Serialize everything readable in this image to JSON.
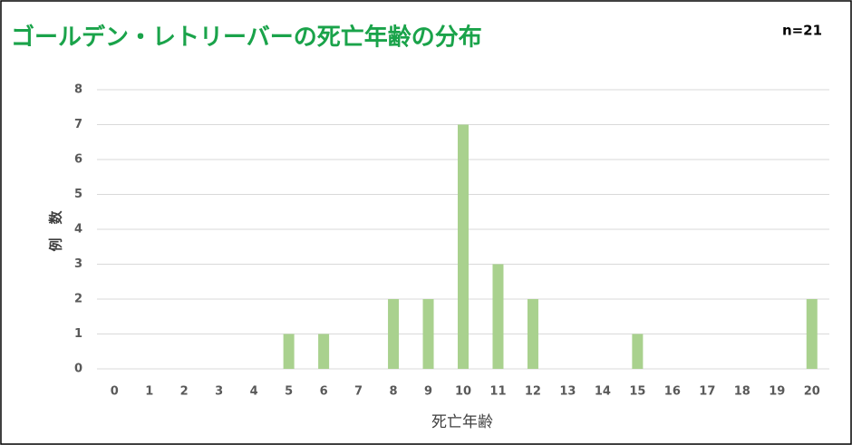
{
  "chart_data": {
    "type": "bar",
    "title": "ゴールデン・レトリーバーの死亡年齢の分布",
    "annotation": "n=21",
    "x_label": "死亡年齢",
    "y_label": "例　数",
    "categories": [
      "0",
      "1",
      "2",
      "3",
      "4",
      "5",
      "6",
      "7",
      "8",
      "9",
      "10",
      "11",
      "12",
      "13",
      "14",
      "15",
      "16",
      "17",
      "18",
      "19",
      "20"
    ],
    "values": [
      0,
      0,
      0,
      0,
      0,
      1,
      1,
      0,
      2,
      2,
      7,
      3,
      2,
      0,
      0,
      1,
      0,
      0,
      0,
      0,
      2
    ],
    "color": "#a9d18e",
    "ylim": [
      0,
      8
    ],
    "yticks": [
      0,
      1,
      2,
      3,
      4,
      5,
      6,
      7,
      8
    ],
    "grid": true
  }
}
